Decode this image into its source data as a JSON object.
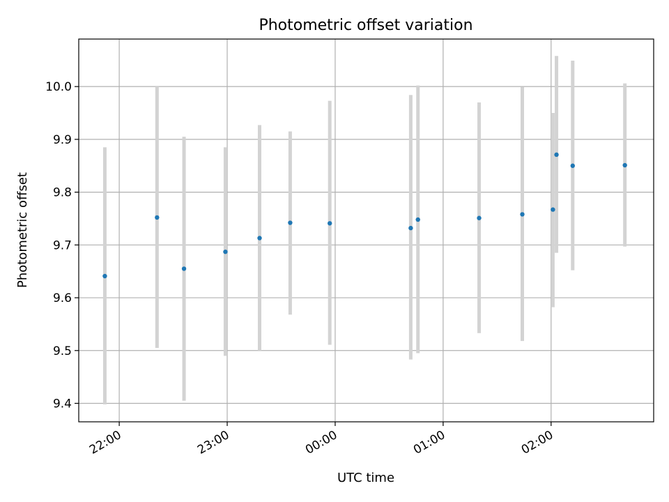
{
  "chart_data": {
    "type": "scatter",
    "title": "Photometric offset variation",
    "xlabel": "UTC time",
    "ylabel": "Photometric offset",
    "x_unit": "UTC time",
    "x_ticks": [
      "22:00",
      "23:00",
      "00:00",
      "01:00",
      "02:00"
    ],
    "x_tick_values": [
      "21:45:00",
      "22:00:00",
      "23:00:00",
      "00:00:00",
      "01:00:00",
      "02:00:00",
      "02:57:00"
    ],
    "xlim": [
      "21:37:30",
      "02:57:00"
    ],
    "y_ticks": [
      "9.4",
      "9.5",
      "9.6",
      "9.7",
      "9.8",
      "9.9",
      "10.0"
    ],
    "ylim": [
      9.365,
      10.09
    ],
    "grid": true,
    "marker_color": "#1f77b4",
    "errorbar_color": "#d3d3d3",
    "series": [
      {
        "points": [
          {
            "time": "21:52",
            "y": 9.641,
            "yerr_low": 9.398,
            "yerr_high": 9.885
          },
          {
            "time": "22:21",
            "y": 9.752,
            "yerr_low": 9.505,
            "yerr_high": 10.0
          },
          {
            "time": "22:36",
            "y": 9.655,
            "yerr_low": 9.405,
            "yerr_high": 9.905
          },
          {
            "time": "22:59",
            "y": 9.687,
            "yerr_low": 9.49,
            "yerr_high": 9.885
          },
          {
            "time": "23:18",
            "y": 9.713,
            "yerr_low": 9.5,
            "yerr_high": 9.927
          },
          {
            "time": "23:35",
            "y": 9.742,
            "yerr_low": 9.568,
            "yerr_high": 9.915
          },
          {
            "time": "23:57",
            "y": 9.741,
            "yerr_low": 9.511,
            "yerr_high": 9.973
          },
          {
            "time": "00:42",
            "y": 9.732,
            "yerr_low": 9.483,
            "yerr_high": 9.984
          },
          {
            "time": "00:46",
            "y": 9.748,
            "yerr_low": 9.495,
            "yerr_high": 10.002
          },
          {
            "time": "01:20",
            "y": 9.751,
            "yerr_low": 9.533,
            "yerr_high": 9.97
          },
          {
            "time": "01:44",
            "y": 9.758,
            "yerr_low": 9.518,
            "yerr_high": 9.999
          },
          {
            "time": "02:01",
            "y": 9.767,
            "yerr_low": 9.582,
            "yerr_high": 9.95
          },
          {
            "time": "02:03",
            "y": 9.871,
            "yerr_low": 9.685,
            "yerr_high": 10.058
          },
          {
            "time": "02:12",
            "y": 9.85,
            "yerr_low": 9.652,
            "yerr_high": 10.049
          },
          {
            "time": "02:41",
            "y": 9.851,
            "yerr_low": 9.697,
            "yerr_high": 10.006
          }
        ]
      }
    ]
  }
}
